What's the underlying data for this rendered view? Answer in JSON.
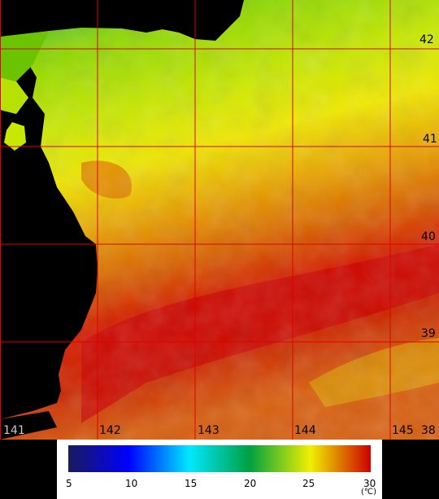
{
  "map": {
    "lat_labels": [
      "42",
      "41",
      "40",
      "39",
      "38"
    ],
    "lon_labels": [
      "141",
      "142",
      "143",
      "144",
      "145"
    ],
    "grid_color": "#e00000",
    "land_color": "#000000"
  },
  "legend": {
    "ticks": [
      "5",
      "10",
      "15",
      "20",
      "25",
      "30"
    ],
    "unit": "(℃)",
    "colors": [
      "#1a1a5c",
      "#0000ff",
      "#00e8ff",
      "#00a040",
      "#f0f000",
      "#cc0000"
    ]
  }
}
